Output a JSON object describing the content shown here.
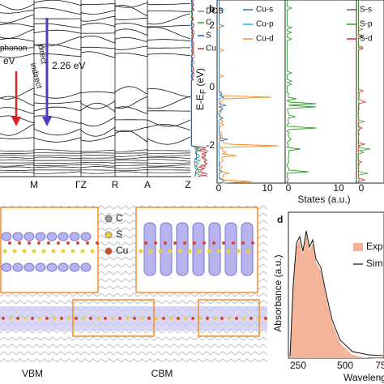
{
  "panels": {
    "a": {
      "legend": [
        "DOS",
        "C",
        "S",
        "Cu"
      ],
      "annotations": [
        "phonon",
        "eV",
        "indirect",
        "direct",
        "2.26 eV"
      ],
      "kpoints": [
        "M",
        "ΓZ",
        "R",
        "A",
        "Z"
      ]
    },
    "b": {
      "label": "b",
      "legend": [
        "Cu-s",
        "Cu-p",
        "Cu-d",
        "S-s",
        "S-p",
        "S-d"
      ],
      "y_label": "E-E",
      "y_label_sub": "F",
      "y_label_unit": " (eV)",
      "y_ticks": [
        "2",
        "0",
        "-2"
      ],
      "x_ticks": [
        "0",
        "10",
        "0",
        "10",
        "0"
      ],
      "x_label": "States (a.u.)"
    },
    "c": {
      "legend": [
        "C",
        "S",
        "Cu"
      ],
      "labels": [
        "VBM",
        "CBM"
      ]
    },
    "d": {
      "label": "d",
      "legend": [
        "Exp",
        "Sim"
      ],
      "y_label": "Absorbance (a.u.)",
      "x_ticks": [
        "250",
        "500",
        "75"
      ],
      "x_label": "Wavelength"
    }
  }
}
